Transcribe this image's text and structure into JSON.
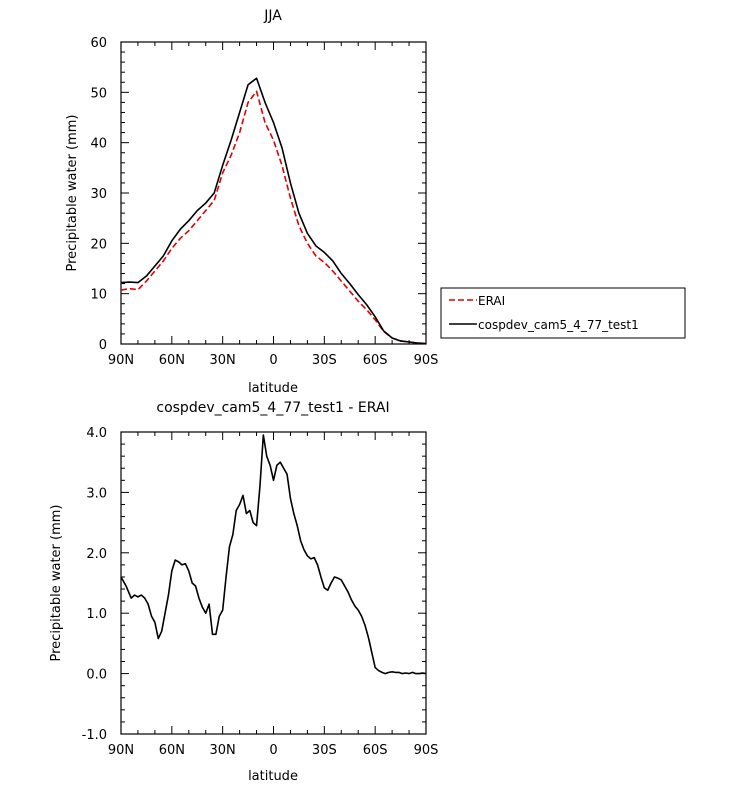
{
  "chart_data": [
    {
      "type": "line",
      "title": "JJA",
      "xlabel": "latitude",
      "ylabel": "Precipitable water (mm)",
      "xlim": [
        90,
        -90
      ],
      "ylim": [
        0,
        60
      ],
      "xticks": [
        90,
        60,
        30,
        0,
        -30,
        -60,
        -90
      ],
      "xtick_labels": [
        "90N",
        "60N",
        "30N",
        "0",
        "30S",
        "60S",
        "90S"
      ],
      "yticks": [
        0,
        10,
        20,
        30,
        40,
        50,
        60
      ],
      "ytick_labels": [
        "0",
        "10",
        "20",
        "30",
        "40",
        "50",
        "60"
      ],
      "legend": "outside-right",
      "series": [
        {
          "name": "ERAI",
          "color": "#e00000",
          "dash": "dashed",
          "x": [
            90,
            85,
            80,
            75,
            70,
            65,
            60,
            55,
            50,
            45,
            40,
            35,
            30,
            25,
            20,
            15,
            10,
            5,
            0,
            -5,
            -10,
            -15,
            -20,
            -25,
            -30,
            -35,
            -40,
            -45,
            -50,
            -55,
            -60,
            -65,
            -70,
            -75,
            -80,
            -85,
            -90
          ],
          "y": [
            10.7,
            11.0,
            10.8,
            12.5,
            14.5,
            16.5,
            19.0,
            21.0,
            22.5,
            24.5,
            26.5,
            28.5,
            34.0,
            37.5,
            42.0,
            48.0,
            50.2,
            44.0,
            40.5,
            35.5,
            29.0,
            23.5,
            20.0,
            17.5,
            16.2,
            14.5,
            12.5,
            10.5,
            8.5,
            6.8,
            4.8,
            2.5,
            1.2,
            0.6,
            0.4,
            0.2,
            0.1
          ]
        },
        {
          "name": "cospdev_cam5_4_77_test1",
          "color": "#000000",
          "dash": "solid",
          "x": [
            90,
            85,
            80,
            75,
            70,
            65,
            60,
            55,
            50,
            45,
            40,
            35,
            30,
            25,
            20,
            15,
            10,
            5,
            0,
            -5,
            -10,
            -15,
            -20,
            -25,
            -30,
            -35,
            -40,
            -45,
            -50,
            -55,
            -60,
            -65,
            -70,
            -75,
            -80,
            -85,
            -90
          ],
          "y": [
            12.2,
            12.3,
            12.2,
            13.5,
            15.5,
            17.5,
            20.5,
            22.8,
            24.5,
            26.5,
            28.0,
            30.0,
            35.5,
            40.5,
            46.0,
            51.5,
            52.8,
            48.0,
            44.0,
            39.0,
            32.0,
            26.0,
            22.0,
            19.5,
            18.2,
            16.5,
            14.0,
            12.0,
            9.8,
            7.8,
            5.4,
            2.6,
            1.2,
            0.6,
            0.4,
            0.2,
            0.1
          ]
        }
      ]
    },
    {
      "type": "line",
      "title": "cospdev_cam5_4_77_test1 - ERAI",
      "xlabel": "latitude",
      "ylabel": "Precipitable water (mm)",
      "xlim": [
        90,
        -90
      ],
      "ylim": [
        -1.0,
        4.0
      ],
      "xticks": [
        90,
        60,
        30,
        0,
        -30,
        -60,
        -90
      ],
      "xtick_labels": [
        "90N",
        "60N",
        "30N",
        "0",
        "30S",
        "60S",
        "90S"
      ],
      "yticks": [
        -1.0,
        0.0,
        1.0,
        2.0,
        3.0,
        4.0
      ],
      "ytick_labels": [
        "-1.0",
        "0.0",
        "1.0",
        "2.0",
        "3.0",
        "4.0"
      ],
      "series": [
        {
          "color": "#000000",
          "dash": "solid",
          "x": [
            90,
            87,
            84,
            82,
            80,
            78,
            76,
            74,
            72,
            70,
            68,
            66,
            64,
            62,
            60,
            58,
            56,
            54,
            52,
            50,
            48,
            46,
            44,
            42,
            40,
            38,
            36,
            34,
            32,
            30,
            28,
            26,
            24,
            22,
            20,
            18,
            16,
            14,
            12,
            10,
            8,
            6,
            4,
            2,
            0,
            -2,
            -4,
            -6,
            -8,
            -10,
            -12,
            -14,
            -16,
            -18,
            -20,
            -22,
            -24,
            -26,
            -28,
            -30,
            -32,
            -34,
            -36,
            -38,
            -40,
            -42,
            -44,
            -46,
            -48,
            -50,
            -52,
            -54,
            -56,
            -58,
            -60,
            -62,
            -64,
            -66,
            -68,
            -70,
            -72,
            -74,
            -76,
            -78,
            -80,
            -82,
            -84,
            -86,
            -88,
            -90
          ],
          "y": [
            1.6,
            1.45,
            1.25,
            1.3,
            1.27,
            1.3,
            1.25,
            1.15,
            0.95,
            0.85,
            0.58,
            0.7,
            1.0,
            1.3,
            1.7,
            1.88,
            1.85,
            1.8,
            1.82,
            1.7,
            1.5,
            1.45,
            1.25,
            1.1,
            1.0,
            1.15,
            0.65,
            0.65,
            0.95,
            1.05,
            1.6,
            2.1,
            2.3,
            2.7,
            2.8,
            2.95,
            2.65,
            2.7,
            2.5,
            2.45,
            3.1,
            3.95,
            3.6,
            3.45,
            3.2,
            3.45,
            3.5,
            3.4,
            3.3,
            2.9,
            2.65,
            2.45,
            2.2,
            2.05,
            1.95,
            1.9,
            1.92,
            1.8,
            1.6,
            1.42,
            1.38,
            1.5,
            1.6,
            1.58,
            1.55,
            1.45,
            1.35,
            1.22,
            1.12,
            1.05,
            0.95,
            0.8,
            0.6,
            0.35,
            0.1,
            0.05,
            0.02,
            0.0,
            0.02,
            0.03,
            0.02,
            0.02,
            0.0,
            0.01,
            0.0,
            0.02,
            0.0,
            0.0,
            0.01,
            0.0
          ]
        }
      ]
    }
  ]
}
